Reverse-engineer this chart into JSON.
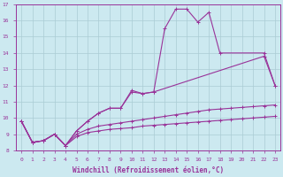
{
  "xlabel": "Windchill (Refroidissement éolien,°C)",
  "xlim": [
    -0.5,
    23.5
  ],
  "ylim": [
    8,
    17
  ],
  "xticks": [
    0,
    1,
    2,
    3,
    4,
    5,
    6,
    7,
    8,
    9,
    10,
    11,
    12,
    13,
    14,
    15,
    16,
    17,
    18,
    19,
    20,
    21,
    22,
    23
  ],
  "yticks": [
    8,
    9,
    10,
    11,
    12,
    13,
    14,
    15,
    16,
    17
  ],
  "bg_color": "#cce9f0",
  "line_color": "#993399",
  "grid_color": "#aaccd4",
  "lines": [
    {
      "x": [
        0,
        1,
        2,
        3,
        4,
        5,
        6,
        7,
        8,
        9,
        10,
        11,
        12,
        13,
        14,
        15,
        16,
        17,
        18,
        22,
        23
      ],
      "y": [
        9.8,
        8.5,
        8.6,
        9.0,
        8.3,
        9.2,
        9.8,
        10.3,
        10.6,
        10.6,
        11.7,
        11.5,
        11.6,
        15.5,
        16.7,
        16.7,
        15.9,
        16.5,
        14.0,
        14.0,
        12.0
      ]
    },
    {
      "x": [
        0,
        1,
        2,
        3,
        4,
        5,
        6,
        7,
        8,
        9,
        10,
        11,
        12,
        22,
        23
      ],
      "y": [
        9.8,
        8.5,
        8.6,
        9.0,
        8.3,
        9.2,
        9.8,
        10.3,
        10.6,
        10.6,
        11.6,
        11.5,
        11.6,
        13.8,
        12.0
      ]
    },
    {
      "x": [
        0,
        1,
        2,
        3,
        4,
        5,
        6,
        7,
        8,
        9,
        10,
        11,
        12,
        13,
        14,
        15,
        16,
        17,
        18,
        19,
        20,
        21,
        22,
        23
      ],
      "y": [
        9.8,
        8.5,
        8.6,
        9.0,
        8.3,
        9.0,
        9.3,
        9.5,
        9.6,
        9.7,
        9.8,
        9.9,
        10.0,
        10.1,
        10.2,
        10.3,
        10.4,
        10.5,
        10.55,
        10.6,
        10.65,
        10.7,
        10.75,
        10.8
      ]
    },
    {
      "x": [
        0,
        1,
        2,
        3,
        4,
        5,
        6,
        7,
        8,
        9,
        10,
        11,
        12,
        13,
        14,
        15,
        16,
        17,
        18,
        19,
        20,
        21,
        22,
        23
      ],
      "y": [
        9.8,
        8.5,
        8.6,
        9.0,
        8.3,
        8.85,
        9.1,
        9.2,
        9.3,
        9.35,
        9.4,
        9.5,
        9.55,
        9.6,
        9.65,
        9.7,
        9.75,
        9.8,
        9.85,
        9.9,
        9.95,
        10.0,
        10.05,
        10.1
      ]
    }
  ]
}
